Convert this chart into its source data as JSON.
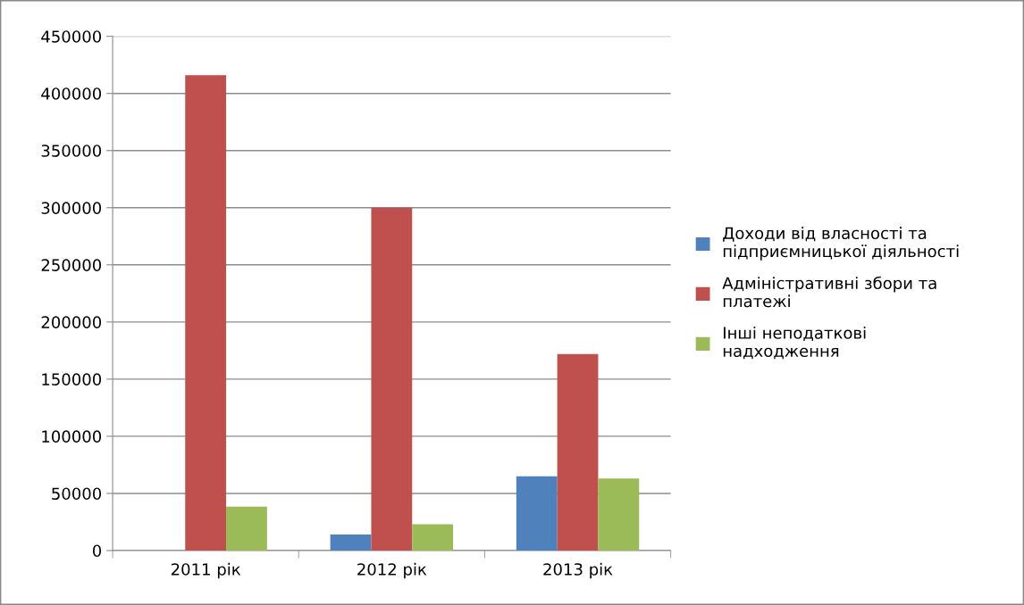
{
  "chart_data": {
    "type": "bar",
    "categories": [
      "2011 рік",
      "2012 рік",
      "2013 рік"
    ],
    "series": [
      {
        "name": "Доходи від власності та\nпідприємницької діяльності",
        "color": "#4f81bd",
        "values": [
          null,
          14000,
          65000
        ]
      },
      {
        "name": "Адміністративні збори та\nплатежі",
        "color": "#c0504d",
        "values": [
          416000,
          300000,
          172000
        ]
      },
      {
        "name": "Інші неподаткові\nнадходження",
        "color": "#9bbb59",
        "values": [
          38500,
          23000,
          63000
        ]
      }
    ],
    "ylim": [
      0,
      450000
    ],
    "yticks": [
      0,
      50000,
      100000,
      150000,
      200000,
      250000,
      300000,
      350000,
      400000,
      450000
    ],
    "grid": "y",
    "legend": "right"
  }
}
